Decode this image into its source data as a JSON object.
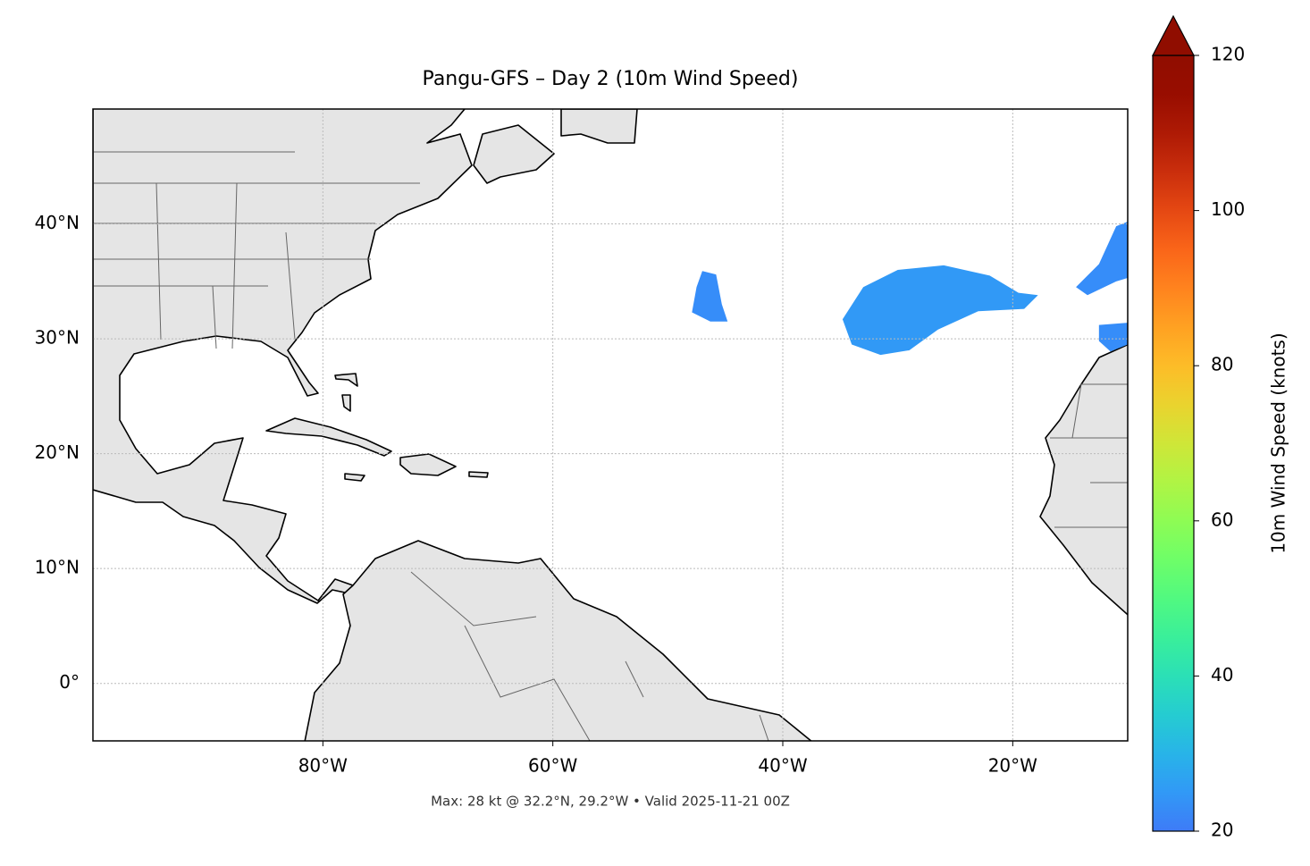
{
  "chart_data": {
    "type": "map",
    "title": "Pangu-GFS – Day 2 (10m Wind Speed)",
    "footer": "Max: 28 kt @ 32.2°N, 29.2°W • Valid 2025-11-21 00Z",
    "xlim": [
      -100,
      -10
    ],
    "ylim": [
      -5,
      50
    ],
    "xticks": [
      {
        "value": -80,
        "label": "80°W"
      },
      {
        "value": -60,
        "label": "60°W"
      },
      {
        "value": -40,
        "label": "40°W"
      },
      {
        "value": -20,
        "label": "20°W"
      }
    ],
    "yticks": [
      {
        "value": 0,
        "label": "0°"
      },
      {
        "value": 10,
        "label": "10°N"
      },
      {
        "value": 20,
        "label": "20°N"
      },
      {
        "value": 30,
        "label": "30°N"
      },
      {
        "value": 40,
        "label": "40°N"
      }
    ],
    "grid": true,
    "cmap": "turbo",
    "colorbar_label": "10m Wind Speed (knots)",
    "clim": [
      20,
      120
    ],
    "cticks": [
      20,
      40,
      60,
      80,
      100,
      120
    ],
    "wind_areas": [
      {
        "value": 23,
        "outline": [
          [
            -47,
            35.9
          ],
          [
            -45.8,
            35.6
          ],
          [
            -45.3,
            33
          ],
          [
            -44.8,
            31.5
          ],
          [
            -46.3,
            31.5
          ],
          [
            -47.9,
            32.3
          ],
          [
            -47.5,
            34.5
          ]
        ]
      },
      {
        "value": 25,
        "outline": [
          [
            -34.8,
            31.7
          ],
          [
            -33,
            34.5
          ],
          [
            -30,
            36
          ],
          [
            -26,
            36.4
          ],
          [
            -22,
            35.5
          ],
          [
            -19.5,
            34
          ],
          [
            -17.8,
            33.8
          ],
          [
            -19,
            32.6
          ],
          [
            -23,
            32.4
          ],
          [
            -26.5,
            30.8
          ],
          [
            -29,
            29
          ],
          [
            -31.5,
            28.6
          ],
          [
            -34,
            29.5
          ]
        ]
      },
      {
        "value": 23,
        "outline": [
          [
            -10,
            40.2
          ],
          [
            -11,
            39.8
          ],
          [
            -12.5,
            36.5
          ],
          [
            -14.5,
            34.5
          ],
          [
            -13.5,
            33.8
          ],
          [
            -11,
            35
          ],
          [
            -10,
            35.3
          ]
        ]
      },
      {
        "value": 23,
        "outline": [
          [
            -12.5,
            31.2
          ],
          [
            -10,
            31.4
          ],
          [
            -10,
            29.5
          ],
          [
            -11.5,
            28.9
          ],
          [
            -12.5,
            29.8
          ]
        ]
      }
    ]
  }
}
